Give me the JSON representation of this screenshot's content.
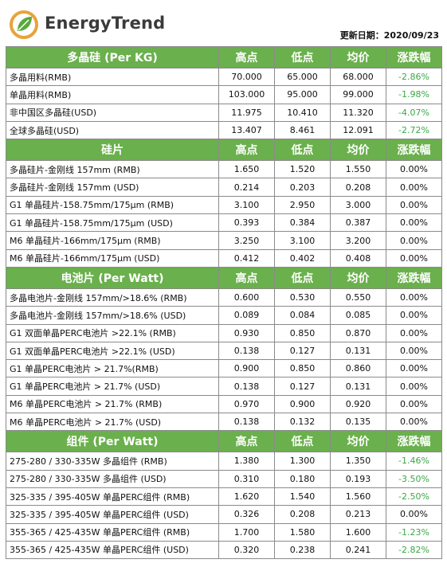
{
  "header": {
    "brand": "EnergyTrend",
    "update_label": "更新日期：2020/09/23"
  },
  "columns": [
    "高点",
    "低点",
    "均价",
    "涨跌幅"
  ],
  "sections": [
    {
      "title": "多晶硅 (Per KG)",
      "rows": [
        {
          "name": "多晶用料(RMB)",
          "high": "70.000",
          "low": "65.000",
          "avg": "68.000",
          "change": "-2.86%"
        },
        {
          "name": "单晶用料(RMB)",
          "high": "103.000",
          "low": "95.000",
          "avg": "99.000",
          "change": "-1.98%"
        },
        {
          "name": "非中国区多晶硅(USD)",
          "high": "11.975",
          "low": "10.410",
          "avg": "11.320",
          "change": "-4.07%"
        },
        {
          "name": "全球多晶硅(USD)",
          "high": "13.407",
          "low": "8.461",
          "avg": "12.091",
          "change": "-2.72%"
        }
      ]
    },
    {
      "title": "硅片",
      "rows": [
        {
          "name": "多晶硅片-金刚线 157mm (RMB)",
          "high": "1.650",
          "low": "1.520",
          "avg": "1.550",
          "change": "0.00%"
        },
        {
          "name": "多晶硅片-金刚线 157mm (USD)",
          "high": "0.214",
          "low": "0.203",
          "avg": "0.208",
          "change": "0.00%"
        },
        {
          "name": "G1 单晶硅片-158.75mm/175μm (RMB)",
          "high": "3.100",
          "low": "2.950",
          "avg": "3.000",
          "change": "0.00%"
        },
        {
          "name": "G1 单晶硅片-158.75mm/175μm (USD)",
          "high": "0.393",
          "low": "0.384",
          "avg": "0.387",
          "change": "0.00%"
        },
        {
          "name": "M6 单晶硅片-166mm/175μm (RMB)",
          "high": "3.250",
          "low": "3.100",
          "avg": "3.200",
          "change": "0.00%"
        },
        {
          "name": "M6 单晶硅片-166mm/175μm (USD)",
          "high": "0.412",
          "low": "0.402",
          "avg": "0.408",
          "change": "0.00%"
        }
      ]
    },
    {
      "title": "电池片 (Per Watt)",
      "rows": [
        {
          "name": "多晶电池片-金刚线 157mm/>18.6% (RMB)",
          "high": "0.600",
          "low": "0.530",
          "avg": "0.550",
          "change": "0.00%"
        },
        {
          "name": "多晶电池片-金刚线 157mm/>18.6% (USD)",
          "high": "0.089",
          "low": "0.084",
          "avg": "0.085",
          "change": "0.00%"
        },
        {
          "name": "G1 双面单晶PERC电池片 >22.1% (RMB)",
          "high": "0.930",
          "low": "0.850",
          "avg": "0.870",
          "change": "0.00%"
        },
        {
          "name": "G1 双面单晶PERC电池片 >22.1% (USD)",
          "high": "0.138",
          "low": "0.127",
          "avg": "0.131",
          "change": "0.00%"
        },
        {
          "name": "G1 单晶PERC电池片 > 21.7%(RMB)",
          "high": "0.900",
          "low": "0.850",
          "avg": "0.860",
          "change": "0.00%"
        },
        {
          "name": "G1 单晶PERC电池片 > 21.7% (USD)",
          "high": "0.138",
          "low": "0.127",
          "avg": "0.131",
          "change": "0.00%"
        },
        {
          "name": "M6 单晶PERC电池片 > 21.7% (RMB)",
          "high": "0.970",
          "low": "0.900",
          "avg": "0.920",
          "change": "0.00%"
        },
        {
          "name": "M6 单晶PERC电池片 > 21.7% (USD)",
          "high": "0.138",
          "low": "0.132",
          "avg": "0.135",
          "change": "0.00%"
        }
      ]
    },
    {
      "title": "组件 (Per Watt)",
      "rows": [
        {
          "name": "275-280 / 330-335W 多晶组件 (RMB)",
          "high": "1.380",
          "low": "1.300",
          "avg": "1.350",
          "change": "-1.46%"
        },
        {
          "name": "275-280 / 330-335W 多晶组件 (USD)",
          "high": "0.310",
          "low": "0.180",
          "avg": "0.193",
          "change": "-3.50%"
        },
        {
          "name": "325-335 / 395-405W 单晶PERC组件 (RMB)",
          "high": "1.620",
          "low": "1.540",
          "avg": "1.560",
          "change": "-2.50%"
        },
        {
          "name": "325-335 / 395-405W 单晶PERC组件 (USD)",
          "high": "0.326",
          "low": "0.208",
          "avg": "0.213",
          "change": "0.00%"
        },
        {
          "name": "355-365 / 425-435W 单晶PERC组件 (RMB)",
          "high": "1.700",
          "low": "1.580",
          "avg": "1.600",
          "change": "-1.23%"
        },
        {
          "name": "355-365 / 425-435W 单晶PERC组件 (USD)",
          "high": "0.320",
          "low": "0.238",
          "avg": "0.241",
          "change": "-2.82%"
        }
      ]
    }
  ],
  "colors": {
    "header_green": "#6ab04c",
    "negative_green": "#3aa845"
  }
}
